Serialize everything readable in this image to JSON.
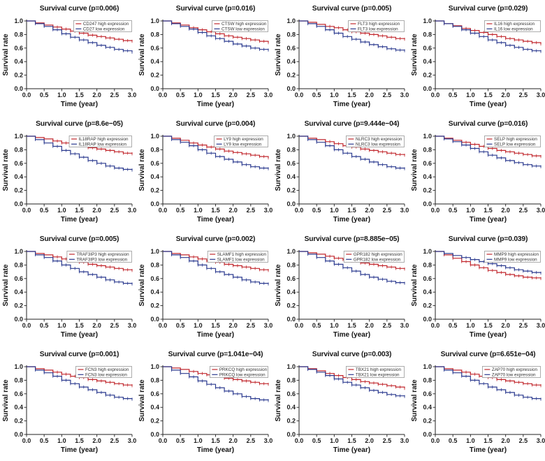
{
  "figure": {
    "description_title": "Survival curves grid"
  },
  "axes_shared": {
    "xtick_labels": [
      "0.0",
      "0.5",
      "1.0",
      "1.5",
      "2.0",
      "2.5",
      "3.0"
    ],
    "ytick_labels": [
      "0.0",
      "0.2",
      "0.4",
      "0.6",
      "0.8",
      "1.0"
    ]
  },
  "colors": {
    "high": "#c1272d",
    "low": "#2b3a8f"
  },
  "chart_data": [
    {
      "type": "line",
      "title": "Survival curve (p=0.006)",
      "xlabel": "Time (year)",
      "ylabel": "Survival rate",
      "xlim": [
        0,
        3
      ],
      "ylim": [
        0,
        1.05
      ],
      "grid": false,
      "legend_position": "upper right",
      "x": [
        0,
        0.25,
        0.5,
        0.75,
        1,
        1.25,
        1.5,
        1.75,
        2,
        2.25,
        2.5,
        2.75,
        3
      ],
      "series": [
        {
          "name": "CD247 high expression",
          "color": "#c1272d",
          "values": [
            1,
            0.97,
            0.94,
            0.91,
            0.88,
            0.85,
            0.82,
            0.79,
            0.77,
            0.75,
            0.73,
            0.71,
            0.7
          ]
        },
        {
          "name": "CD27 low expression",
          "color": "#2b3a8f",
          "values": [
            1,
            0.96,
            0.92,
            0.87,
            0.81,
            0.76,
            0.72,
            0.68,
            0.64,
            0.61,
            0.58,
            0.56,
            0.54
          ]
        }
      ]
    },
    {
      "type": "line",
      "title": "Survival curve (p=0.016)",
      "xlabel": "Time (year)",
      "ylabel": "Survival rate",
      "xlim": [
        0,
        3
      ],
      "ylim": [
        0,
        1.05
      ],
      "grid": false,
      "legend_position": "upper right",
      "x": [
        0,
        0.25,
        0.5,
        0.75,
        1,
        1.25,
        1.5,
        1.75,
        2,
        2.25,
        2.5,
        2.75,
        3
      ],
      "series": [
        {
          "name": "CTSW high expression",
          "color": "#c1272d",
          "values": [
            1,
            0.97,
            0.94,
            0.9,
            0.87,
            0.84,
            0.81,
            0.78,
            0.76,
            0.74,
            0.72,
            0.7,
            0.68
          ]
        },
        {
          "name": "CTSW low expression",
          "color": "#2b3a8f",
          "values": [
            1,
            0.96,
            0.92,
            0.88,
            0.83,
            0.78,
            0.74,
            0.7,
            0.66,
            0.63,
            0.6,
            0.58,
            0.57
          ]
        }
      ]
    },
    {
      "type": "line",
      "title": "Survival curve (p=0.005)",
      "xlabel": "Time (year)",
      "ylabel": "Survival rate",
      "xlim": [
        0,
        3
      ],
      "ylim": [
        0,
        1.05
      ],
      "grid": false,
      "legend_position": "upper right",
      "x": [
        0,
        0.25,
        0.5,
        0.75,
        1,
        1.25,
        1.5,
        1.75,
        2,
        2.25,
        2.5,
        2.75,
        3
      ],
      "series": [
        {
          "name": "FLT3 high expression",
          "color": "#c1272d",
          "values": [
            1,
            0.98,
            0.95,
            0.92,
            0.9,
            0.87,
            0.84,
            0.82,
            0.8,
            0.78,
            0.76,
            0.74,
            0.73
          ]
        },
        {
          "name": "FLT3 low expression",
          "color": "#2b3a8f",
          "values": [
            1,
            0.96,
            0.92,
            0.87,
            0.82,
            0.77,
            0.73,
            0.69,
            0.65,
            0.62,
            0.59,
            0.57,
            0.56
          ]
        }
      ]
    },
    {
      "type": "line",
      "title": "Survival curve (p=0.029)",
      "xlabel": "Time (year)",
      "ylabel": "Survival rate",
      "xlim": [
        0,
        3
      ],
      "ylim": [
        0,
        1.05
      ],
      "grid": false,
      "legend_position": "upper right",
      "x": [
        0,
        0.25,
        0.5,
        0.75,
        1,
        1.25,
        1.5,
        1.75,
        2,
        2.25,
        2.5,
        2.75,
        3
      ],
      "series": [
        {
          "name": "IL16 high expression",
          "color": "#c1272d",
          "values": [
            1,
            0.96,
            0.93,
            0.89,
            0.86,
            0.83,
            0.8,
            0.77,
            0.74,
            0.72,
            0.7,
            0.68,
            0.66
          ]
        },
        {
          "name": "IL16 low expression",
          "color": "#2b3a8f",
          "values": [
            1,
            0.96,
            0.92,
            0.87,
            0.82,
            0.77,
            0.72,
            0.68,
            0.64,
            0.61,
            0.58,
            0.56,
            0.55
          ]
        }
      ]
    },
    {
      "type": "line",
      "title": "Survival curve (p=8.6e−05)",
      "xlabel": "Time (year)",
      "ylabel": "Survival rate",
      "xlim": [
        0,
        3
      ],
      "ylim": [
        0,
        1.05
      ],
      "grid": false,
      "legend_position": "upper right",
      "x": [
        0,
        0.25,
        0.5,
        0.75,
        1,
        1.25,
        1.5,
        1.75,
        2,
        2.25,
        2.5,
        2.75,
        3
      ],
      "series": [
        {
          "name": "IL18RAP high expression",
          "color": "#c1272d",
          "values": [
            1,
            0.98,
            0.96,
            0.93,
            0.9,
            0.88,
            0.86,
            0.83,
            0.81,
            0.79,
            0.77,
            0.75,
            0.74
          ]
        },
        {
          "name": "IL18RAP low expression",
          "color": "#2b3a8f",
          "values": [
            1,
            0.95,
            0.9,
            0.85,
            0.79,
            0.74,
            0.69,
            0.64,
            0.6,
            0.56,
            0.53,
            0.51,
            0.5
          ]
        }
      ]
    },
    {
      "type": "line",
      "title": "Survival curve (p=0.004)",
      "xlabel": "Time (year)",
      "ylabel": "Survival rate",
      "xlim": [
        0,
        3
      ],
      "ylim": [
        0,
        1.05
      ],
      "grid": false,
      "legend_position": "upper right",
      "x": [
        0,
        0.25,
        0.5,
        0.75,
        1,
        1.25,
        1.5,
        1.75,
        2,
        2.25,
        2.5,
        2.75,
        3
      ],
      "series": [
        {
          "name": "LY9 high expression",
          "color": "#c1272d",
          "values": [
            1,
            0.97,
            0.94,
            0.9,
            0.87,
            0.84,
            0.81,
            0.78,
            0.76,
            0.74,
            0.72,
            0.7,
            0.68
          ]
        },
        {
          "name": "LY9 low expression",
          "color": "#2b3a8f",
          "values": [
            1,
            0.95,
            0.91,
            0.86,
            0.8,
            0.75,
            0.7,
            0.66,
            0.62,
            0.58,
            0.55,
            0.53,
            0.52
          ]
        }
      ]
    },
    {
      "type": "line",
      "title": "Survival curve (p=9.444e−04)",
      "xlabel": "Time (year)",
      "ylabel": "Survival rate",
      "xlim": [
        0,
        3
      ],
      "ylim": [
        0,
        1.05
      ],
      "grid": false,
      "legend_position": "upper right",
      "x": [
        0,
        0.25,
        0.5,
        0.75,
        1,
        1.25,
        1.5,
        1.75,
        2,
        2.25,
        2.5,
        2.75,
        3
      ],
      "series": [
        {
          "name": "NLRC3 high expression",
          "color": "#c1272d",
          "values": [
            1,
            0.97,
            0.95,
            0.92,
            0.89,
            0.86,
            0.84,
            0.81,
            0.79,
            0.77,
            0.75,
            0.73,
            0.72
          ]
        },
        {
          "name": "NLRC3 low expression",
          "color": "#2b3a8f",
          "values": [
            1,
            0.95,
            0.91,
            0.86,
            0.8,
            0.75,
            0.7,
            0.66,
            0.62,
            0.58,
            0.55,
            0.53,
            0.52
          ]
        }
      ]
    },
    {
      "type": "line",
      "title": "Survival curve (p=0.016)",
      "xlabel": "Time (year)",
      "ylabel": "Survival rate",
      "xlim": [
        0,
        3
      ],
      "ylim": [
        0,
        1.05
      ],
      "grid": false,
      "legend_position": "upper right",
      "x": [
        0,
        0.25,
        0.5,
        0.75,
        1,
        1.25,
        1.5,
        1.75,
        2,
        2.25,
        2.5,
        2.75,
        3
      ],
      "series": [
        {
          "name": "SELP high expression",
          "color": "#c1272d",
          "values": [
            1,
            0.97,
            0.94,
            0.91,
            0.88,
            0.85,
            0.82,
            0.79,
            0.77,
            0.75,
            0.73,
            0.71,
            0.7
          ]
        },
        {
          "name": "SELP low expression",
          "color": "#2b3a8f",
          "values": [
            1,
            0.96,
            0.92,
            0.87,
            0.82,
            0.77,
            0.72,
            0.68,
            0.64,
            0.61,
            0.58,
            0.56,
            0.55
          ]
        }
      ]
    },
    {
      "type": "line",
      "title": "Survival curve (p=0.005)",
      "xlabel": "Time (year)",
      "ylabel": "Survival rate",
      "xlim": [
        0,
        3
      ],
      "ylim": [
        0,
        1.05
      ],
      "grid": false,
      "legend_position": "upper right",
      "x": [
        0,
        0.25,
        0.5,
        0.75,
        1,
        1.25,
        1.5,
        1.75,
        2,
        2.25,
        2.5,
        2.75,
        3
      ],
      "series": [
        {
          "name": "TRAF3IP3 high expression",
          "color": "#c1272d",
          "values": [
            1,
            0.97,
            0.95,
            0.92,
            0.89,
            0.86,
            0.84,
            0.81,
            0.79,
            0.77,
            0.75,
            0.73,
            0.72
          ]
        },
        {
          "name": "TRAF3IP3 low expression",
          "color": "#2b3a8f",
          "values": [
            1,
            0.95,
            0.91,
            0.86,
            0.8,
            0.75,
            0.7,
            0.66,
            0.62,
            0.58,
            0.55,
            0.53,
            0.52
          ]
        }
      ]
    },
    {
      "type": "line",
      "title": "Survival curve (p=0.002)",
      "xlabel": "Time (year)",
      "ylabel": "Survival rate",
      "xlim": [
        0,
        3
      ],
      "ylim": [
        0,
        1.05
      ],
      "grid": false,
      "legend_position": "upper right",
      "x": [
        0,
        0.25,
        0.5,
        0.75,
        1,
        1.25,
        1.5,
        1.75,
        2,
        2.25,
        2.5,
        2.75,
        3
      ],
      "series": [
        {
          "name": "SLAMF1 high expression",
          "color": "#c1272d",
          "values": [
            1,
            0.97,
            0.95,
            0.92,
            0.89,
            0.86,
            0.84,
            0.81,
            0.79,
            0.77,
            0.75,
            0.73,
            0.72
          ]
        },
        {
          "name": "SLAMF1 low expression",
          "color": "#2b3a8f",
          "values": [
            1,
            0.95,
            0.91,
            0.86,
            0.8,
            0.75,
            0.7,
            0.66,
            0.62,
            0.58,
            0.55,
            0.53,
            0.52
          ]
        }
      ]
    },
    {
      "type": "line",
      "title": "Survival curve (p=8.885e−05)",
      "xlabel": "Time (year)",
      "ylabel": "Survival rate",
      "xlim": [
        0,
        3
      ],
      "ylim": [
        0,
        1.05
      ],
      "grid": false,
      "legend_position": "upper right",
      "x": [
        0,
        0.25,
        0.5,
        0.75,
        1,
        1.25,
        1.5,
        1.75,
        2,
        2.25,
        2.5,
        2.75,
        3
      ],
      "series": [
        {
          "name": "GPR182 high expression",
          "color": "#c1272d",
          "values": [
            1,
            0.98,
            0.96,
            0.93,
            0.9,
            0.88,
            0.86,
            0.83,
            0.81,
            0.79,
            0.77,
            0.75,
            0.74
          ]
        },
        {
          "name": "GPR182 low expression",
          "color": "#2b3a8f",
          "values": [
            1,
            0.96,
            0.91,
            0.86,
            0.81,
            0.76,
            0.71,
            0.66,
            0.62,
            0.59,
            0.56,
            0.54,
            0.53
          ]
        }
      ]
    },
    {
      "type": "line",
      "title": "Survival curve (p=0.039)",
      "xlabel": "Time (year)",
      "ylabel": "Survival rate",
      "xlim": [
        0,
        3
      ],
      "ylim": [
        0,
        1.05
      ],
      "grid": false,
      "legend_position": "upper right",
      "x": [
        0,
        0.25,
        0.5,
        0.75,
        1,
        1.25,
        1.5,
        1.75,
        2,
        2.25,
        2.5,
        2.75,
        3
      ],
      "series": [
        {
          "name": "MMP9 high expression",
          "color": "#c1272d",
          "values": [
            1,
            0.95,
            0.9,
            0.85,
            0.8,
            0.76,
            0.72,
            0.69,
            0.66,
            0.64,
            0.62,
            0.61,
            0.6
          ]
        },
        {
          "name": "MMP9 low expression",
          "color": "#2b3a8f",
          "values": [
            1,
            0.97,
            0.94,
            0.91,
            0.88,
            0.85,
            0.82,
            0.79,
            0.76,
            0.73,
            0.71,
            0.69,
            0.68
          ]
        }
      ]
    },
    {
      "type": "line",
      "title": "Survival curve (p=0.001)",
      "xlabel": "Time (year)",
      "ylabel": "Survival rate",
      "xlim": [
        0,
        3
      ],
      "ylim": [
        0,
        1.05
      ],
      "grid": false,
      "legend_position": "upper right",
      "x": [
        0,
        0.25,
        0.5,
        0.75,
        1,
        1.25,
        1.5,
        1.75,
        2,
        2.25,
        2.5,
        2.75,
        3
      ],
      "series": [
        {
          "name": "FCN3 high expression",
          "color": "#c1272d",
          "values": [
            1,
            0.97,
            0.95,
            0.92,
            0.89,
            0.86,
            0.84,
            0.81,
            0.79,
            0.77,
            0.75,
            0.73,
            0.72
          ]
        },
        {
          "name": "FCN3 low expression",
          "color": "#2b3a8f",
          "values": [
            1,
            0.95,
            0.91,
            0.86,
            0.8,
            0.75,
            0.7,
            0.66,
            0.62,
            0.58,
            0.55,
            0.53,
            0.52
          ]
        }
      ]
    },
    {
      "type": "line",
      "title": "Survival curve (p=1.041e−04)",
      "xlabel": "Time (year)",
      "ylabel": "Survival rate",
      "xlim": [
        0,
        3
      ],
      "ylim": [
        0,
        1.05
      ],
      "grid": false,
      "legend_position": "upper right",
      "x": [
        0,
        0.25,
        0.5,
        0.75,
        1,
        1.25,
        1.5,
        1.75,
        2,
        2.25,
        2.5,
        2.75,
        3
      ],
      "series": [
        {
          "name": "PRKCQ high expression",
          "color": "#c1272d",
          "values": [
            1,
            0.98,
            0.96,
            0.93,
            0.9,
            0.88,
            0.86,
            0.83,
            0.81,
            0.79,
            0.77,
            0.75,
            0.74
          ]
        },
        {
          "name": "PRKCQ low expression",
          "color": "#2b3a8f",
          "values": [
            1,
            0.95,
            0.9,
            0.85,
            0.79,
            0.74,
            0.69,
            0.64,
            0.6,
            0.56,
            0.53,
            0.51,
            0.5
          ]
        }
      ]
    },
    {
      "type": "line",
      "title": "Survival curve (p=0.003)",
      "xlabel": "Time (year)",
      "ylabel": "Survival rate",
      "xlim": [
        0,
        3
      ],
      "ylim": [
        0,
        1.05
      ],
      "grid": false,
      "legend_position": "upper right",
      "x": [
        0,
        0.25,
        0.5,
        0.75,
        1,
        1.25,
        1.5,
        1.75,
        2,
        2.25,
        2.5,
        2.75,
        3
      ],
      "series": [
        {
          "name": "TBX21 high expression",
          "color": "#c1272d",
          "values": [
            1,
            0.97,
            0.94,
            0.9,
            0.87,
            0.84,
            0.81,
            0.78,
            0.76,
            0.74,
            0.72,
            0.7,
            0.68
          ]
        },
        {
          "name": "TBX21 low expression",
          "color": "#2b3a8f",
          "values": [
            1,
            0.96,
            0.92,
            0.87,
            0.82,
            0.77,
            0.73,
            0.69,
            0.65,
            0.62,
            0.59,
            0.57,
            0.56
          ]
        }
      ]
    },
    {
      "type": "line",
      "title": "Survival curve (p=6.651e−04)",
      "xlabel": "Time (year)",
      "ylabel": "Survival rate",
      "xlim": [
        0,
        3
      ],
      "ylim": [
        0,
        1.05
      ],
      "grid": false,
      "legend_position": "upper right",
      "x": [
        0,
        0.25,
        0.5,
        0.75,
        1,
        1.25,
        1.5,
        1.75,
        2,
        2.25,
        2.5,
        2.75,
        3
      ],
      "series": [
        {
          "name": "ZAP70 high expression",
          "color": "#c1272d",
          "values": [
            1,
            0.97,
            0.95,
            0.92,
            0.89,
            0.86,
            0.84,
            0.81,
            0.79,
            0.77,
            0.75,
            0.73,
            0.72
          ]
        },
        {
          "name": "ZAP70 low expression",
          "color": "#2b3a8f",
          "values": [
            1,
            0.95,
            0.91,
            0.86,
            0.8,
            0.75,
            0.7,
            0.66,
            0.62,
            0.58,
            0.55,
            0.53,
            0.52
          ]
        }
      ]
    }
  ]
}
